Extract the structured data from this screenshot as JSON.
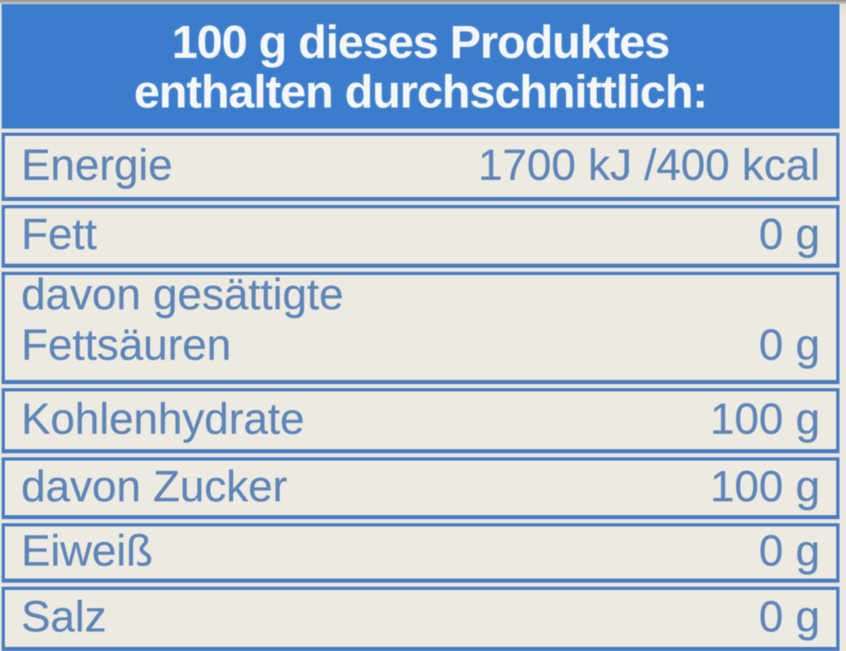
{
  "label": {
    "header": {
      "line1": "100 g dieses Produktes",
      "line2": "enthalten durchschnittlich:"
    },
    "rows": [
      {
        "label": "Energie",
        "value": "1700 kJ /400 kcal"
      },
      {
        "label": "Fett",
        "value": "0 g"
      },
      {
        "label": "davon gesättigte Fettsäuren",
        "label_lines": [
          "davon gesättigte",
          "Fettsäuren"
        ],
        "value": "0 g"
      },
      {
        "label": "Kohlenhydrate",
        "value": "100 g"
      },
      {
        "label": "davon Zucker",
        "value": "100 g"
      },
      {
        "label": "Eiweiß",
        "value": "0 g"
      },
      {
        "label": "Salz",
        "value": "0 g"
      }
    ],
    "colors": {
      "header_bg": "#3b7dcc",
      "header_text": "#f4f6f8",
      "row_bg": "#edeae1",
      "border_blue": "#4a7dc0",
      "row_text": "#5e86b9",
      "photo_bg": "#e9e7e0",
      "photo_top_edge": "#8f9092"
    }
  }
}
